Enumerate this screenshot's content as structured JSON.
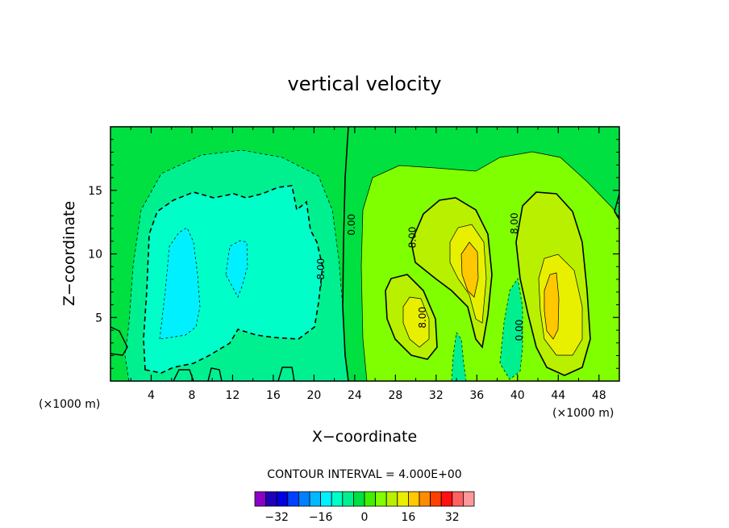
{
  "chart_data": {
    "type": "heatmap",
    "title": "vertical velocity",
    "xlabel": "X−coordinate",
    "ylabel": "Z−coordinate",
    "x_unit": "(×1000 m)",
    "x_unit_right": "(×1000 m)",
    "xlim": [
      0,
      50
    ],
    "ylim": [
      0,
      20
    ],
    "x_ticks": [
      4,
      8,
      12,
      16,
      20,
      24,
      28,
      32,
      36,
      40,
      44,
      48
    ],
    "x_tick_labels": [
      "4",
      "8",
      "12",
      "16",
      "20",
      "24",
      "28",
      "32",
      "36",
      "40",
      "44",
      "48"
    ],
    "y_ticks": [
      5,
      10,
      15
    ],
    "y_tick_labels": [
      "5",
      "10",
      "15"
    ],
    "contour_interval_text": "CONTOUR INTERVAL = 4.000E+00",
    "contour_interval": 4,
    "contour_labels": [
      {
        "text": "−8.00",
        "x": 21,
        "z": 8.5
      },
      {
        "text": "0.00",
        "x": 24,
        "z": 12.3
      },
      {
        "text": "8.00",
        "x": 30,
        "z": 11.3
      },
      {
        "text": "8.00",
        "x": 31,
        "z": 5.0
      },
      {
        "text": "8.00",
        "x": 40,
        "z": 12.4
      },
      {
        "text": "0.00",
        "x": 40.5,
        "z": 4.0
      }
    ],
    "colorbar": {
      "levels": [
        -36,
        -32,
        -28,
        -24,
        -20,
        -16,
        -12,
        -8,
        -4,
        0,
        4,
        8,
        12,
        16,
        20,
        24,
        28,
        32,
        36
      ],
      "tick_values": [
        -32,
        -16,
        0,
        16,
        32
      ],
      "tick_labels": [
        "−32",
        "−16",
        "0",
        "16",
        "32"
      ],
      "colors": [
        "#8a00c8",
        "#2000b8",
        "#0000e0",
        "#0040ff",
        "#0080ff",
        "#00b8ff",
        "#00f0ff",
        "#00ffc8",
        "#00f090",
        "#00e040",
        "#40f000",
        "#80ff00",
        "#b8f000",
        "#e8f000",
        "#ffc800",
        "#ff8c00",
        "#ff4000",
        "#ff1010",
        "#ff6060",
        "#ff9898"
      ]
    },
    "fields": {
      "background_level": 0,
      "regions": [
        {
          "level": -4,
          "desc": "weak downdraft envelope",
          "cx": 10.5,
          "cz": 9.5
        },
        {
          "level": -8,
          "desc": "downdraft core",
          "cx": 10,
          "cz": 9
        },
        {
          "level": -12,
          "desc": "strong downdraft pockets",
          "cx": 7,
          "cz": 8
        },
        {
          "level": 4,
          "desc": "updraft envelope",
          "cx": 38,
          "cz": 9
        },
        {
          "level": 8,
          "desc": "updraft cells",
          "cx": 36,
          "cz": 8
        },
        {
          "level": 16,
          "desc": "updraft maxima",
          "cx": 35,
          "cz": 10
        },
        {
          "level": 20,
          "desc": "updraft peaks",
          "cx": 43.5,
          "cz": 6.5
        }
      ]
    }
  }
}
